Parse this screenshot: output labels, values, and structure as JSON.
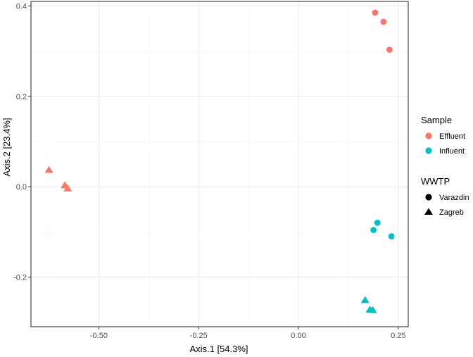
{
  "chart_data": {
    "type": "scatter",
    "xlabel": "Axis.1   [54.3%]",
    "ylabel": "Axis.2   [23.4%]",
    "xlim": [
      -0.67,
      0.275
    ],
    "ylim": [
      -0.31,
      0.41
    ],
    "x_ticks": [
      -0.5,
      -0.25,
      0.0,
      0.25
    ],
    "x_tick_labels": [
      "-0.50",
      "-0.25",
      "0.00",
      "0.25"
    ],
    "y_ticks": [
      -0.2,
      0.0,
      0.2,
      0.4
    ],
    "y_tick_labels": [
      "-0.2",
      "0.0",
      "0.2",
      "0.4"
    ],
    "grid": true,
    "legend_position": "right",
    "legend": {
      "color_title": "Sample",
      "color_items": [
        {
          "label": "Effluent",
          "color": "#F8766D"
        },
        {
          "label": "Influent",
          "color": "#00BFC4"
        }
      ],
      "shape_title": "WWTP",
      "shape_items": [
        {
          "label": "Varazdin",
          "shape": "circle"
        },
        {
          "label": "Zagreb",
          "shape": "triangle"
        }
      ]
    },
    "points": [
      {
        "x": 0.192,
        "y": 0.385,
        "sample": "Effluent",
        "wwtp": "Varazdin"
      },
      {
        "x": 0.213,
        "y": 0.365,
        "sample": "Effluent",
        "wwtp": "Varazdin"
      },
      {
        "x": 0.228,
        "y": 0.303,
        "sample": "Effluent",
        "wwtp": "Varazdin"
      },
      {
        "x": -0.625,
        "y": 0.037,
        "sample": "Effluent",
        "wwtp": "Zagreb"
      },
      {
        "x": -0.585,
        "y": 0.003,
        "sample": "Effluent",
        "wwtp": "Zagreb"
      },
      {
        "x": -0.578,
        "y": -0.004,
        "sample": "Effluent",
        "wwtp": "Zagreb"
      },
      {
        "x": 0.198,
        "y": -0.08,
        "sample": "Influent",
        "wwtp": "Varazdin"
      },
      {
        "x": 0.188,
        "y": -0.096,
        "sample": "Influent",
        "wwtp": "Varazdin"
      },
      {
        "x": 0.233,
        "y": -0.11,
        "sample": "Influent",
        "wwtp": "Varazdin"
      },
      {
        "x": 0.167,
        "y": -0.251,
        "sample": "Influent",
        "wwtp": "Zagreb"
      },
      {
        "x": 0.179,
        "y": -0.272,
        "sample": "Influent",
        "wwtp": "Zagreb"
      },
      {
        "x": 0.186,
        "y": -0.273,
        "sample": "Influent",
        "wwtp": "Zagreb"
      }
    ]
  }
}
